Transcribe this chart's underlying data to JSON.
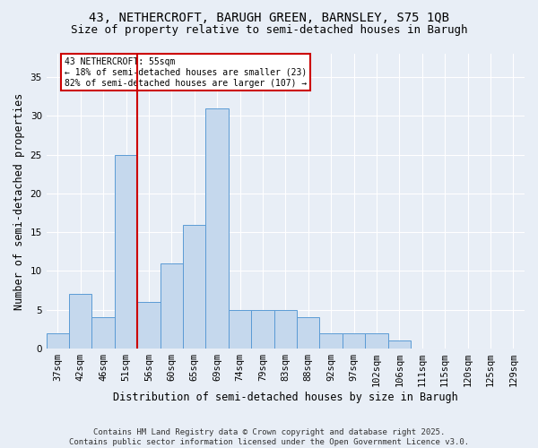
{
  "title": "43, NETHERCROFT, BARUGH GREEN, BARNSLEY, S75 1QB",
  "subtitle": "Size of property relative to semi-detached houses in Barugh",
  "xlabel": "Distribution of semi-detached houses by size in Barugh",
  "ylabel": "Number of semi-detached properties",
  "footnote1": "Contains HM Land Registry data © Crown copyright and database right 2025.",
  "footnote2": "Contains public sector information licensed under the Open Government Licence v3.0.",
  "annotation_title": "43 NETHERCROFT: 55sqm",
  "annotation_line2": "← 18% of semi-detached houses are smaller (23)",
  "annotation_line3": "82% of semi-detached houses are larger (107) →",
  "bar_labels": [
    "37sqm",
    "42sqm",
    "46sqm",
    "51sqm",
    "56sqm",
    "60sqm",
    "65sqm",
    "69sqm",
    "74sqm",
    "79sqm",
    "83sqm",
    "88sqm",
    "92sqm",
    "97sqm",
    "102sqm",
    "106sqm",
    "111sqm",
    "115sqm",
    "120sqm",
    "125sqm",
    "129sqm"
  ],
  "bar_values": [
    2,
    7,
    4,
    25,
    6,
    11,
    16,
    31,
    5,
    5,
    5,
    4,
    2,
    2,
    2,
    1,
    0,
    0,
    0,
    0,
    0
  ],
  "bar_color": "#c5d8ed",
  "bar_edge_color": "#5b9bd5",
  "vline_index": 3.5,
  "vline_color": "#cc0000",
  "ylim": [
    0,
    38
  ],
  "yticks": [
    0,
    5,
    10,
    15,
    20,
    25,
    30,
    35
  ],
  "background_color": "#e8eef6",
  "grid_color": "#ffffff",
  "title_fontsize": 10,
  "subtitle_fontsize": 9,
  "axis_label_fontsize": 8.5,
  "tick_fontsize": 7.5,
  "footnote_fontsize": 6.5
}
